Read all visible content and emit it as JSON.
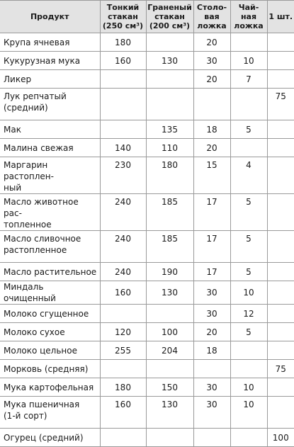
{
  "table": {
    "headers": {
      "product": "Продукт",
      "thin_glass": "Тонкий\nстакан\n(250 см³)",
      "faceted_glass": "Граненый\nстакан\n(200 см³)",
      "tablespoon": "Столо-\nвая\nложка",
      "teaspoon": "Чай-\nная\nложка",
      "piece": "1 шт."
    },
    "rows": [
      {
        "name": "Крупа ячневая",
        "thin": "180",
        "faceted": "",
        "tbsp": "20",
        "tsp": "",
        "piece": ""
      },
      {
        "name": "Кукурузная мука",
        "thin": "160",
        "faceted": "130",
        "tbsp": "30",
        "tsp": "10",
        "piece": ""
      },
      {
        "name": "Ликер",
        "thin": "",
        "faceted": "",
        "tbsp": "20",
        "tsp": "7",
        "piece": ""
      },
      {
        "name": "Лук репчатый\n(средний)",
        "thin": "",
        "faceted": "",
        "tbsp": "",
        "tsp": "",
        "piece": "75"
      },
      {
        "name": "Мак",
        "thin": "",
        "faceted": "135",
        "tbsp": "18",
        "tsp": "5",
        "piece": ""
      },
      {
        "name": "Малина свежая",
        "thin": "140",
        "faceted": "110",
        "tbsp": "20",
        "tsp": "",
        "piece": ""
      },
      {
        "name": "Маргарин растоплен-\nный",
        "thin": "230",
        "faceted": "180",
        "tbsp": "15",
        "tsp": "4",
        "piece": ""
      },
      {
        "name": "Масло животное рас-\nтопленное",
        "thin": "240",
        "faceted": "185",
        "tbsp": "17",
        "tsp": "5",
        "piece": ""
      },
      {
        "name": "Масло сливочное\nрастопленное",
        "thin": "240",
        "faceted": "185",
        "tbsp": "17",
        "tsp": "5",
        "piece": ""
      },
      {
        "name": "Масло растительное",
        "thin": "240",
        "faceted": "190",
        "tbsp": "17",
        "tsp": "5",
        "piece": ""
      },
      {
        "name": "Миндаль очищенный",
        "thin": "160",
        "faceted": "130",
        "tbsp": "30",
        "tsp": "10",
        "piece": ""
      },
      {
        "name": "Молоко сгущенное",
        "thin": "",
        "faceted": "",
        "tbsp": "30",
        "tsp": "12",
        "piece": ""
      },
      {
        "name": "Молоко сухое",
        "thin": "120",
        "faceted": "100",
        "tbsp": "20",
        "tsp": "5",
        "piece": ""
      },
      {
        "name": "Молоко цельное",
        "thin": "255",
        "faceted": "204",
        "tbsp": "18",
        "tsp": "",
        "piece": ""
      },
      {
        "name": "Морковь (средняя)",
        "thin": "",
        "faceted": "",
        "tbsp": "",
        "tsp": "",
        "piece": "75"
      },
      {
        "name": "Мука картофельная",
        "thin": "180",
        "faceted": "150",
        "tbsp": "30",
        "tsp": "10",
        "piece": ""
      },
      {
        "name": "Мука пшеничная\n(1-й сорт)",
        "thin": "160",
        "faceted": "130",
        "tbsp": "30",
        "tsp": "10",
        "piece": ""
      },
      {
        "name": "Огурец (средний)",
        "thin": "",
        "faceted": "",
        "tbsp": "",
        "tsp": "",
        "piece": "100"
      }
    ]
  }
}
